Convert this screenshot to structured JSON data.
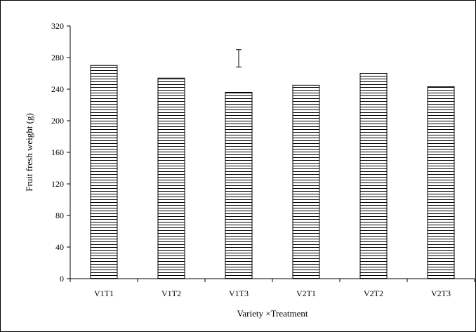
{
  "chart_data": {
    "type": "bar",
    "xlabel": "Variety ×Treatment",
    "ylabel": "Fruit fresh weight (g)",
    "categories": [
      "V1T1",
      "V1T2",
      "V1T3",
      "V2T1",
      "V2T2",
      "V2T3"
    ],
    "values": [
      270,
      254,
      236,
      245,
      260,
      243
    ],
    "ylim": [
      0,
      320
    ],
    "yticks": [
      0,
      40,
      80,
      120,
      160,
      200,
      240,
      280,
      320
    ],
    "error_bar": {
      "center": 279,
      "low": 268,
      "high": 290
    },
    "bar_pattern": "horizontal-hatch",
    "bar_color": "#000000",
    "grid": false,
    "legend": "none"
  }
}
